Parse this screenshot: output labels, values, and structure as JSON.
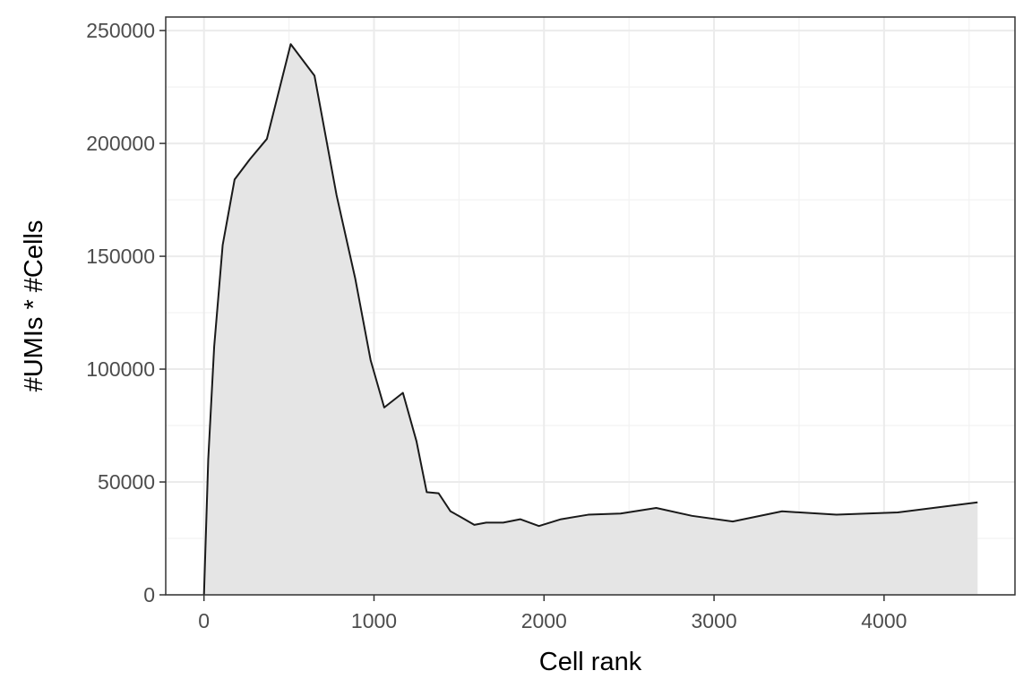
{
  "chart_data": {
    "type": "area",
    "xlabel": "Cell rank",
    "ylabel": "#UMIs * #Cells",
    "xlim": [
      -225,
      4770
    ],
    "ylim": [
      0,
      256000
    ],
    "x_ticks": [
      0,
      1000,
      2000,
      3000,
      4000
    ],
    "x_tick_labels": [
      "0",
      "1000",
      "2000",
      "3000",
      "4000"
    ],
    "y_ticks": [
      0,
      50000,
      100000,
      150000,
      200000,
      250000
    ],
    "y_tick_labels": [
      "0",
      "50000",
      "100000",
      "150000",
      "200000",
      "250000"
    ],
    "grid": true,
    "fill_color": "#e5e5e5",
    "line_color": "#1a1a1a",
    "x": [
      0,
      25,
      60,
      110,
      180,
      270,
      370,
      510,
      650,
      780,
      890,
      980,
      1060,
      1170,
      1250,
      1310,
      1380,
      1450,
      1510,
      1590,
      1660,
      1760,
      1860,
      1970,
      2100,
      2260,
      2450,
      2660,
      2870,
      3110,
      3400,
      3720,
      4080,
      4550
    ],
    "y": [
      0,
      60000,
      110000,
      155000,
      184000,
      193000,
      202000,
      244000,
      230000,
      177000,
      140000,
      104000,
      83000,
      89500,
      68000,
      45500,
      45000,
      37000,
      34500,
      31000,
      32000,
      32000,
      33500,
      30500,
      33500,
      35500,
      36000,
      38500,
      35000,
      32500,
      37000,
      35500,
      36500,
      41000
    ]
  }
}
